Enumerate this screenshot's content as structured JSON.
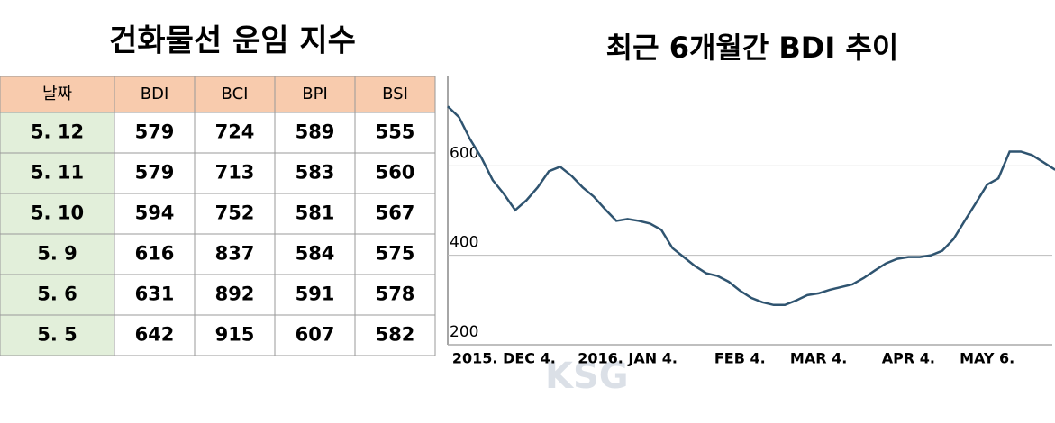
{
  "table": {
    "title": "건화물선 운임 지수",
    "header": [
      "날짜",
      "BDI",
      "BCI",
      "BPI",
      "BSI"
    ],
    "rows": [
      [
        "5. 12",
        "579",
        "724",
        "589",
        "555"
      ],
      [
        "5. 11",
        "579",
        "713",
        "583",
        "560"
      ],
      [
        "5. 10",
        "594",
        "752",
        "581",
        "567"
      ],
      [
        "5. 9",
        "616",
        "837",
        "584",
        "575"
      ],
      [
        "5. 6",
        "631",
        "892",
        "591",
        "578"
      ],
      [
        "5. 5",
        "642",
        "915",
        "607",
        "582"
      ]
    ]
  },
  "chart_data": {
    "type": "line",
    "title": "최근 6개월간 BDI 추이",
    "categories": [
      null,
      null,
      null,
      null,
      null,
      "2015. DEC 4.",
      null,
      null,
      null,
      null,
      null,
      null,
      null,
      null,
      null,
      null,
      "2016. JAN 4.",
      null,
      null,
      null,
      null,
      null,
      null,
      null,
      null,
      null,
      "FEB 4.",
      null,
      null,
      null,
      null,
      null,
      null,
      "MAR 4.",
      null,
      null,
      null,
      null,
      null,
      null,
      null,
      "APR 4.",
      null,
      null,
      null,
      null,
      null,
      null,
      "MAY 6.",
      null,
      null,
      null,
      null,
      null,
      null,
      null
    ],
    "series": [
      {
        "name": "BDI",
        "color": "#2f5470",
        "values": [
          733,
          709,
          659,
          618,
          568,
          537,
          501,
          523,
          552,
          588,
          598,
          578,
          552,
          531,
          503,
          477,
          481,
          477,
          471,
          457,
          416,
          396,
          376,
          360,
          354,
          341,
          321,
          305,
          295,
          289,
          289,
          299,
          311,
          315,
          323,
          329,
          335,
          349,
          366,
          382,
          392,
          396,
          396,
          400,
          410,
          436,
          477,
          517,
          558,
          572,
          632,
          632,
          624,
          608,
          592,
          588
        ]
      }
    ],
    "ylim": [
      200,
      800
    ],
    "yticks": [
      200,
      400,
      600
    ],
    "grid": true,
    "watermark": "KSG"
  }
}
